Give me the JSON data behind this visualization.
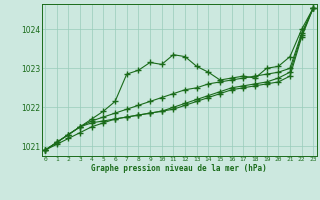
{
  "x": [
    0,
    1,
    2,
    3,
    4,
    5,
    6,
    7,
    8,
    9,
    10,
    11,
    12,
    13,
    14,
    15,
    16,
    17,
    18,
    19,
    20,
    21,
    22,
    23
  ],
  "series1": [
    1020.9,
    1021.1,
    1021.3,
    1021.5,
    1021.7,
    1021.9,
    1022.15,
    1022.85,
    1022.95,
    1023.15,
    1023.1,
    1023.35,
    1023.3,
    1023.05,
    1022.9,
    1022.7,
    1022.75,
    1022.8,
    1022.75,
    1023.0,
    1023.05,
    1023.3,
    1024.0,
    1024.55
  ],
  "series2": [
    1020.9,
    1021.1,
    1021.3,
    1021.5,
    1021.65,
    1021.75,
    1021.85,
    1021.95,
    1022.05,
    1022.15,
    1022.25,
    1022.35,
    1022.45,
    1022.5,
    1022.6,
    1022.65,
    1022.7,
    1022.75,
    1022.8,
    1022.85,
    1022.9,
    1023.0,
    1023.9,
    1024.55
  ],
  "series3": [
    1020.9,
    1021.1,
    1021.3,
    1021.5,
    1021.6,
    1021.65,
    1021.7,
    1021.75,
    1021.8,
    1021.85,
    1021.9,
    1022.0,
    1022.1,
    1022.2,
    1022.3,
    1022.4,
    1022.5,
    1022.55,
    1022.6,
    1022.65,
    1022.75,
    1022.9,
    1023.85,
    1024.55
  ],
  "series4": [
    1020.9,
    1021.05,
    1021.2,
    1021.35,
    1021.5,
    1021.6,
    1021.7,
    1021.75,
    1021.8,
    1021.85,
    1021.9,
    1021.95,
    1022.05,
    1022.15,
    1022.25,
    1022.35,
    1022.45,
    1022.5,
    1022.55,
    1022.6,
    1022.65,
    1022.8,
    1023.8,
    1024.55
  ],
  "line_color": "#1a6b1a",
  "bg_color": "#cce8df",
  "grid_color": "#99ccbb",
  "xlabel": "Graphe pression niveau de la mer (hPa)",
  "yticks": [
    1021,
    1022,
    1023,
    1024
  ],
  "xticks": [
    0,
    1,
    2,
    3,
    4,
    5,
    6,
    7,
    8,
    9,
    10,
    11,
    12,
    13,
    14,
    15,
    16,
    17,
    18,
    19,
    20,
    21,
    22,
    23
  ],
  "ylim": [
    1020.75,
    1024.65
  ],
  "xlim": [
    -0.3,
    23.3
  ]
}
